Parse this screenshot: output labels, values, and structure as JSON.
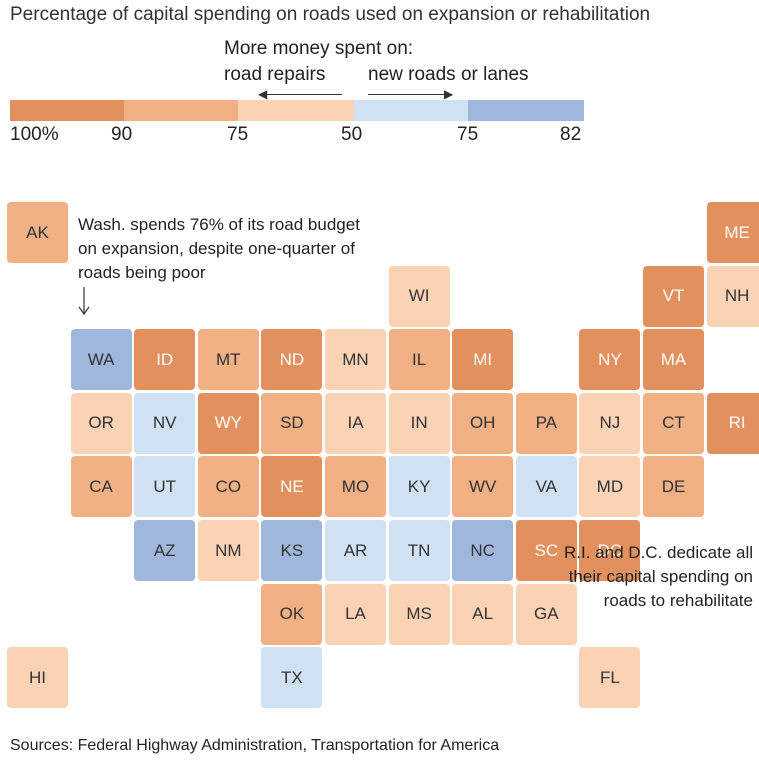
{
  "title": "Percentage of capital spending on roads used on expansion or rehabilitation",
  "legend": {
    "heading": "More money spent on:",
    "left_label": "road repairs",
    "right_label": "new roads or lanes",
    "ticks": [
      "100%",
      "90",
      "75",
      "50",
      "75",
      "82"
    ],
    "colors": {
      "rehab_90_100": "#e3905f",
      "rehab_75_90": "#f2b184",
      "rehab_50_75": "#fad3b5",
      "exp_50_75": "#cfe1f2",
      "exp_75_82": "#9fb7dc"
    }
  },
  "annotations": {
    "wa_note": "Wash. spends 76% of its road budget on expansion, despite one-quarter of roads being poor",
    "ri_dc_note": "R.I. and D.C. dedicate all their capital spending on roads to rehabilitate"
  },
  "source": "Sources: Federal Highway Administration, Transportation for America",
  "states": [
    {
      "abbr": "AK",
      "col": 0,
      "row": 0,
      "category": "rehab_75_90"
    },
    {
      "abbr": "ME",
      "col": 11,
      "row": 0,
      "category": "rehab_90_100"
    },
    {
      "abbr": "WI",
      "col": 6,
      "row": 1,
      "category": "rehab_50_75"
    },
    {
      "abbr": "VT",
      "col": 10,
      "row": 1,
      "category": "rehab_90_100"
    },
    {
      "abbr": "NH",
      "col": 11,
      "row": 1,
      "category": "rehab_50_75"
    },
    {
      "abbr": "WA",
      "col": 1,
      "row": 2,
      "category": "exp_75_82"
    },
    {
      "abbr": "ID",
      "col": 2,
      "row": 2,
      "category": "rehab_90_100"
    },
    {
      "abbr": "MT",
      "col": 3,
      "row": 2,
      "category": "rehab_75_90"
    },
    {
      "abbr": "ND",
      "col": 4,
      "row": 2,
      "category": "rehab_90_100"
    },
    {
      "abbr": "MN",
      "col": 5,
      "row": 2,
      "category": "rehab_50_75"
    },
    {
      "abbr": "IL",
      "col": 6,
      "row": 2,
      "category": "rehab_75_90"
    },
    {
      "abbr": "MI",
      "col": 7,
      "row": 2,
      "category": "rehab_90_100"
    },
    {
      "abbr": "NY",
      "col": 9,
      "row": 2,
      "category": "rehab_90_100"
    },
    {
      "abbr": "MA",
      "col": 10,
      "row": 2,
      "category": "rehab_90_100"
    },
    {
      "abbr": "OR",
      "col": 1,
      "row": 3,
      "category": "rehab_50_75"
    },
    {
      "abbr": "NV",
      "col": 2,
      "row": 3,
      "category": "exp_50_75"
    },
    {
      "abbr": "WY",
      "col": 3,
      "row": 3,
      "category": "rehab_90_100"
    },
    {
      "abbr": "SD",
      "col": 4,
      "row": 3,
      "category": "rehab_75_90"
    },
    {
      "abbr": "IA",
      "col": 5,
      "row": 3,
      "category": "rehab_50_75"
    },
    {
      "abbr": "IN",
      "col": 6,
      "row": 3,
      "category": "rehab_50_75"
    },
    {
      "abbr": "OH",
      "col": 7,
      "row": 3,
      "category": "rehab_75_90"
    },
    {
      "abbr": "PA",
      "col": 8,
      "row": 3,
      "category": "rehab_75_90"
    },
    {
      "abbr": "NJ",
      "col": 9,
      "row": 3,
      "category": "rehab_50_75"
    },
    {
      "abbr": "CT",
      "col": 10,
      "row": 3,
      "category": "rehab_75_90"
    },
    {
      "abbr": "RI",
      "col": 11,
      "row": 3,
      "category": "rehab_90_100"
    },
    {
      "abbr": "CA",
      "col": 1,
      "row": 4,
      "category": "rehab_75_90"
    },
    {
      "abbr": "UT",
      "col": 2,
      "row": 4,
      "category": "exp_50_75"
    },
    {
      "abbr": "CO",
      "col": 3,
      "row": 4,
      "category": "rehab_75_90"
    },
    {
      "abbr": "NE",
      "col": 4,
      "row": 4,
      "category": "rehab_90_100"
    },
    {
      "abbr": "MO",
      "col": 5,
      "row": 4,
      "category": "rehab_75_90"
    },
    {
      "abbr": "KY",
      "col": 6,
      "row": 4,
      "category": "exp_50_75"
    },
    {
      "abbr": "WV",
      "col": 7,
      "row": 4,
      "category": "rehab_75_90"
    },
    {
      "abbr": "VA",
      "col": 8,
      "row": 4,
      "category": "exp_50_75"
    },
    {
      "abbr": "MD",
      "col": 9,
      "row": 4,
      "category": "rehab_50_75"
    },
    {
      "abbr": "DE",
      "col": 10,
      "row": 4,
      "category": "rehab_75_90"
    },
    {
      "abbr": "AZ",
      "col": 2,
      "row": 5,
      "category": "exp_75_82"
    },
    {
      "abbr": "NM",
      "col": 3,
      "row": 5,
      "category": "rehab_50_75"
    },
    {
      "abbr": "KS",
      "col": 4,
      "row": 5,
      "category": "exp_75_82"
    },
    {
      "abbr": "AR",
      "col": 5,
      "row": 5,
      "category": "exp_50_75"
    },
    {
      "abbr": "TN",
      "col": 6,
      "row": 5,
      "category": "exp_50_75"
    },
    {
      "abbr": "NC",
      "col": 7,
      "row": 5,
      "category": "exp_75_82"
    },
    {
      "abbr": "SC",
      "col": 8,
      "row": 5,
      "category": "rehab_90_100"
    },
    {
      "abbr": "DC",
      "col": 9,
      "row": 5,
      "category": "rehab_90_100"
    },
    {
      "abbr": "OK",
      "col": 4,
      "row": 6,
      "category": "rehab_75_90"
    },
    {
      "abbr": "LA",
      "col": 5,
      "row": 6,
      "category": "rehab_50_75"
    },
    {
      "abbr": "MS",
      "col": 6,
      "row": 6,
      "category": "rehab_50_75"
    },
    {
      "abbr": "AL",
      "col": 7,
      "row": 6,
      "category": "rehab_50_75"
    },
    {
      "abbr": "GA",
      "col": 8,
      "row": 6,
      "category": "rehab_50_75"
    },
    {
      "abbr": "HI",
      "col": 0,
      "row": 7,
      "category": "rehab_50_75"
    },
    {
      "abbr": "TX",
      "col": 4,
      "row": 7,
      "category": "exp_50_75"
    },
    {
      "abbr": "FL",
      "col": 9,
      "row": 7,
      "category": "rehab_50_75"
    }
  ]
}
